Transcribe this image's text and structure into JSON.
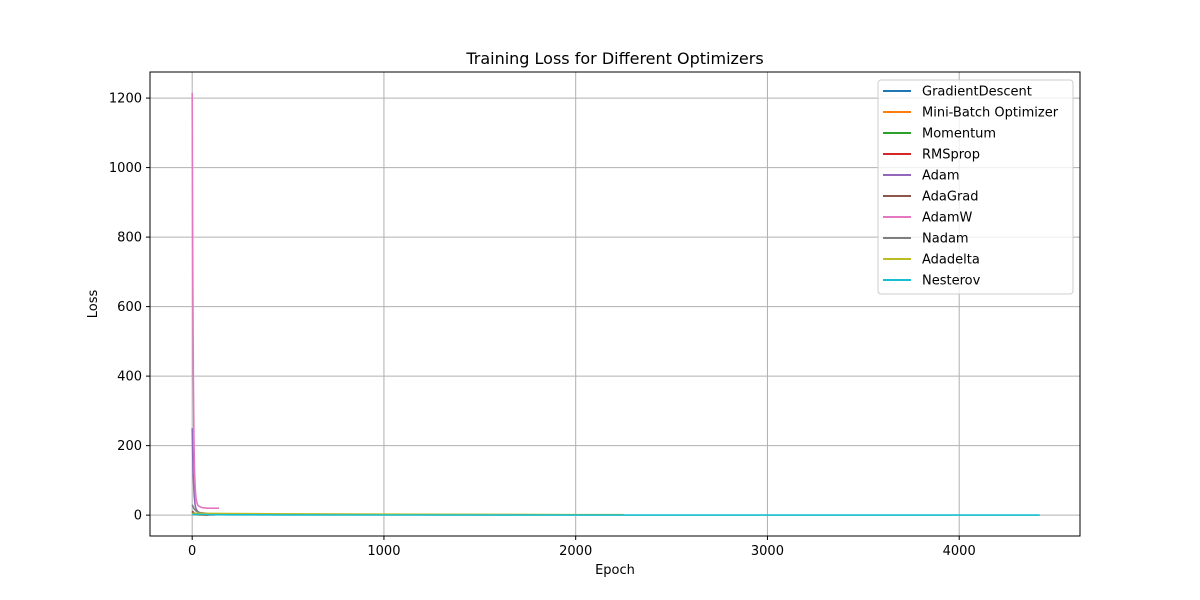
{
  "chart_data": {
    "type": "line",
    "title": "Training Loss for Different Optimizers",
    "xlabel": "Epoch",
    "ylabel": "Loss",
    "xlim": [
      -220,
      4630
    ],
    "ylim": [
      -60,
      1275
    ],
    "xticks": [
      0,
      1000,
      2000,
      3000,
      4000
    ],
    "yticks": [
      0,
      200,
      400,
      600,
      800,
      1000,
      1200
    ],
    "grid": true,
    "legend_position": "top-right",
    "series": [
      {
        "name": "GradientDescent",
        "color": "#1f77b4",
        "x": [
          0,
          10,
          20,
          40,
          80,
          120
        ],
        "y": [
          8,
          4,
          2,
          1.2,
          1,
          1
        ]
      },
      {
        "name": "Mini-Batch Optimizer",
        "color": "#ff7f0e",
        "x": [
          0,
          10,
          20,
          40,
          60,
          90
        ],
        "y": [
          6,
          3,
          1.5,
          1,
          0.8,
          0.7
        ]
      },
      {
        "name": "Momentum",
        "color": "#2ca02c",
        "x": [
          0,
          10,
          20,
          40,
          60,
          80
        ],
        "y": [
          5,
          2.5,
          1.5,
          1,
          0.8,
          0.7
        ]
      },
      {
        "name": "RMSprop",
        "color": "#d62728",
        "x": [
          0,
          10,
          20,
          40,
          60,
          90
        ],
        "y": [
          10,
          5,
          3,
          1.5,
          1,
          0.9
        ]
      },
      {
        "name": "Adam",
        "color": "#9467bd",
        "x": [
          0,
          5,
          10,
          15,
          20,
          30,
          40,
          60,
          80,
          100
        ],
        "y": [
          250,
          120,
          60,
          30,
          18,
          10,
          7,
          5,
          4,
          4
        ]
      },
      {
        "name": "AdaGrad",
        "color": "#8c564b",
        "x": [
          0,
          10,
          20,
          40,
          80,
          120
        ],
        "y": [
          12,
          6,
          4,
          3,
          2,
          2
        ]
      },
      {
        "name": "AdamW",
        "color": "#e377c2",
        "x": [
          0,
          3,
          6,
          9,
          12,
          16,
          20,
          25,
          30,
          40,
          50,
          60,
          80,
          100,
          120,
          140
        ],
        "y": [
          1215,
          700,
          400,
          230,
          130,
          75,
          48,
          35,
          28,
          24,
          22,
          21,
          20,
          20,
          20,
          20
        ]
      },
      {
        "name": "Nadam",
        "color": "#7f7f7f",
        "x": [
          0,
          10,
          20,
          30,
          40,
          60,
          80
        ],
        "y": [
          30,
          18,
          12,
          9,
          7,
          6,
          5
        ]
      },
      {
        "name": "Adadelta",
        "color": "#bcbd22",
        "x": [
          0,
          100,
          200,
          400,
          800,
          1200,
          1600,
          2000,
          2250
        ],
        "y": [
          5,
          5,
          4.5,
          4,
          3,
          2.5,
          2,
          1.5,
          1.2
        ]
      },
      {
        "name": "Nesterov",
        "color": "#17becf",
        "x": [
          0,
          100,
          200,
          500,
          1000,
          2000,
          3000,
          4000,
          4420
        ],
        "y": [
          2,
          1.5,
          1,
          0.6,
          0.4,
          0.3,
          0.2,
          0.2,
          0.2
        ]
      }
    ]
  }
}
